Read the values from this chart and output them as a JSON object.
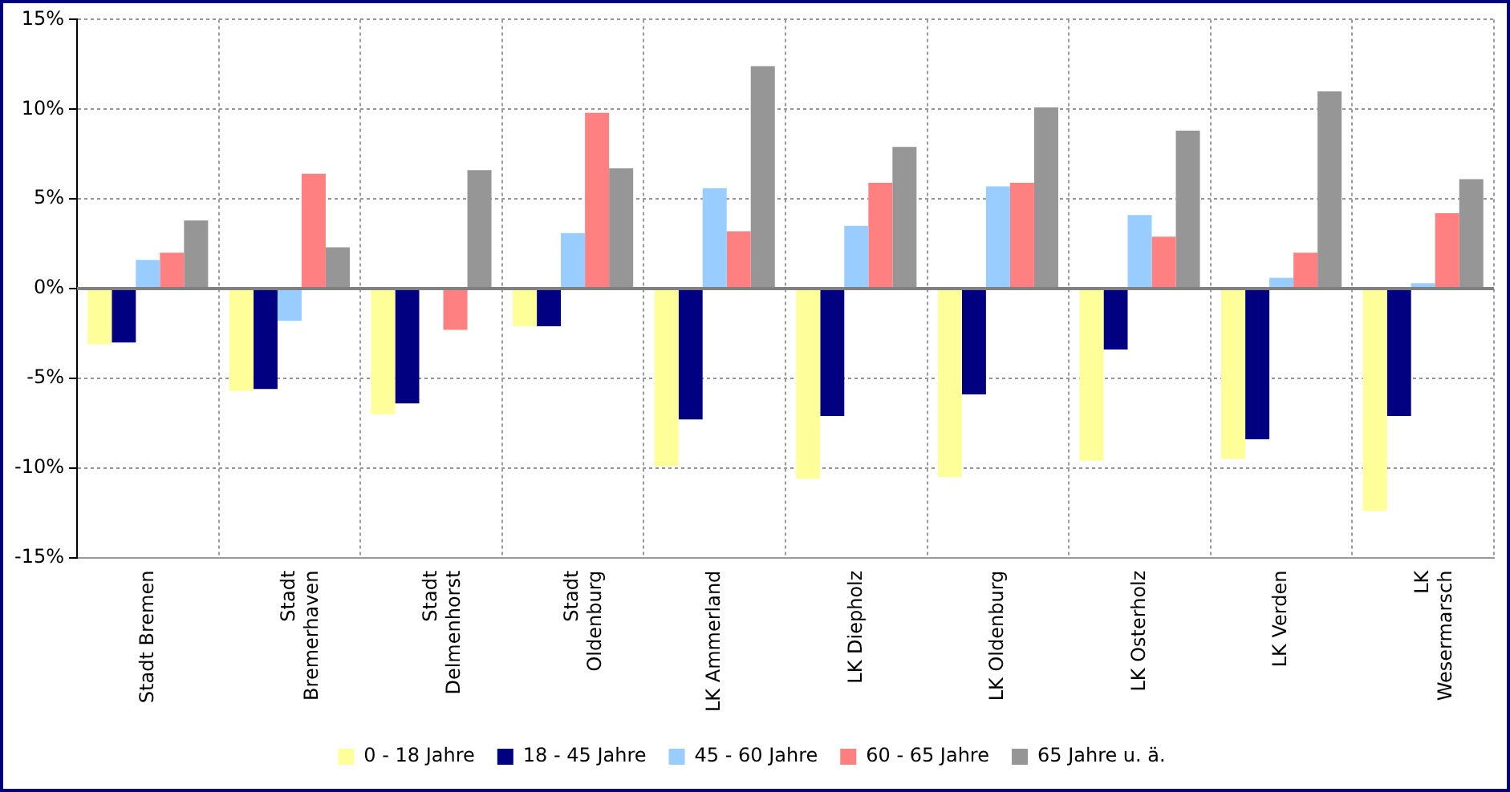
{
  "chart_data": {
    "type": "bar",
    "categories": [
      "Stadt Bremen",
      "Stadt\nBremerhaven",
      "Stadt\nDelmenhorst",
      "Stadt\nOldenburg",
      "LK Ammerland",
      "LK Diepholz",
      "LK Oldenburg",
      "LK Osterholz",
      "LK Verden",
      "LK\nWesermarsch"
    ],
    "series": [
      {
        "name": "0 - 18 Jahre",
        "color": "#ffff99",
        "values": [
          -3.1,
          -5.7,
          -7.0,
          -2.1,
          -9.9,
          -10.6,
          -10.5,
          -9.6,
          -9.5,
          -12.4
        ]
      },
      {
        "name": "18 - 45 Jahre",
        "color": "#000080",
        "values": [
          -3.0,
          -5.6,
          -6.4,
          -2.1,
          -7.3,
          -7.1,
          -5.9,
          -3.4,
          -8.4,
          -7.1
        ]
      },
      {
        "name": "45 - 60 Jahre",
        "color": "#99ccff",
        "values": [
          1.6,
          -1.8,
          0,
          3.1,
          5.6,
          3.5,
          5.7,
          4.1,
          0.6,
          0.3
        ]
      },
      {
        "name": "60 - 65 Jahre",
        "color": "#ff8080",
        "values": [
          2.0,
          6.4,
          -2.3,
          9.8,
          3.2,
          5.9,
          5.9,
          2.9,
          2.0,
          4.2
        ]
      },
      {
        "name": "65 Jahre u. ä.",
        "color": "#969696",
        "values": [
          3.8,
          2.3,
          6.6,
          6.7,
          12.4,
          7.9,
          10.1,
          8.8,
          11.0,
          6.1
        ]
      }
    ],
    "ylim": [
      -15,
      15
    ],
    "yticks": [
      {
        "value": -15,
        "label": "-15%"
      },
      {
        "value": -10,
        "label": "-10%"
      },
      {
        "value": -5,
        "label": "-5%"
      },
      {
        "value": 0,
        "label": "0%"
      },
      {
        "value": 5,
        "label": "5%"
      },
      {
        "value": 10,
        "label": "10%"
      },
      {
        "value": 15,
        "label": "15%"
      }
    ],
    "grid": true,
    "legend": "bottom"
  }
}
